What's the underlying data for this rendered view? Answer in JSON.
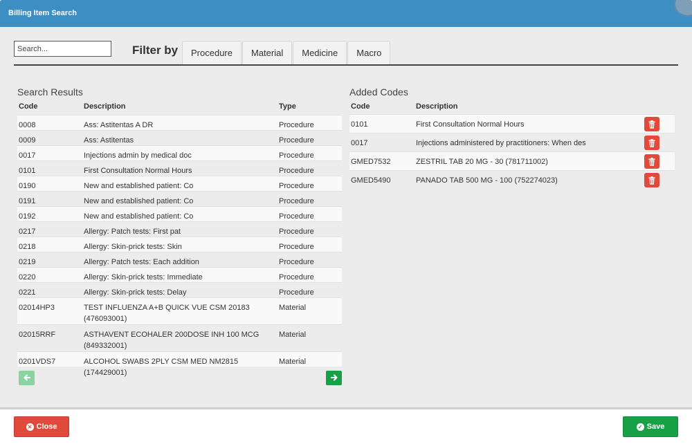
{
  "window": {
    "title": "Billing Item Search"
  },
  "search": {
    "placeholder": "Search...",
    "value": ""
  },
  "filter": {
    "label": "Filter by",
    "tabs": [
      {
        "label": "Procedure"
      },
      {
        "label": "Material"
      },
      {
        "label": "Medicine"
      },
      {
        "label": "Macro"
      }
    ]
  },
  "results": {
    "title": "Search Results",
    "columns": {
      "code": "Code",
      "description": "Description",
      "type": "Type"
    },
    "rows": [
      {
        "code": "0008",
        "description": "Ass: Astitentas A DR",
        "type": "Procedure"
      },
      {
        "code": "0009",
        "description": "Ass: Astitentas",
        "type": "Procedure"
      },
      {
        "code": "0017",
        "description": "Injections admin by medical doc",
        "type": "Procedure"
      },
      {
        "code": "0101",
        "description": "First Consultation Normal Hours",
        "type": "Procedure"
      },
      {
        "code": "0190",
        "description": "New and established patient: Co",
        "type": "Procedure"
      },
      {
        "code": "0191",
        "description": "New and established patient: Co",
        "type": "Procedure"
      },
      {
        "code": "0192",
        "description": "New and established patient: Co",
        "type": "Procedure"
      },
      {
        "code": "0217",
        "description": "Allergy: Patch tests: First pat",
        "type": "Procedure"
      },
      {
        "code": "0218",
        "description": "Allergy: Skin-prick tests: Skin",
        "type": "Procedure"
      },
      {
        "code": "0219",
        "description": "Allergy: Patch tests: Each addition",
        "type": "Procedure"
      },
      {
        "code": "0220",
        "description": "Allergy: Skin-prick tests: Immediate",
        "type": "Procedure"
      },
      {
        "code": "0221",
        "description": "Allergy: Skin-prick tests: Delay",
        "type": "Procedure"
      },
      {
        "code": "02014HP3",
        "description": "TEST INFLUENZA A+B QUICK VUE CSM 20183 (476093001)",
        "type": "Material"
      },
      {
        "code": "02015RRF",
        "description": "ASTHAVENT ECOHALER 200DOSE INH 100 MCG (849332001)",
        "type": "Material"
      },
      {
        "code": "0201VDS7",
        "description": "ALCOHOL SWABS 2PLY CSM MED NM2815 (174429001)",
        "type": "Material"
      }
    ],
    "prev_icon": "arrow-left-icon",
    "next_icon": "arrow-right-icon"
  },
  "added": {
    "title": "Added Codes",
    "columns": {
      "code": "Code",
      "description": "Description"
    },
    "rows": [
      {
        "code": "0101",
        "description": "First Consultation Normal Hours"
      },
      {
        "code": "0017",
        "description": "Injections administered by practitioners: When des"
      },
      {
        "code": "GMED7532",
        "description": "ZESTRIL TAB 20 MG - 30 (781711002)"
      },
      {
        "code": "GMED5490",
        "description": "PANADO TAB 500 MG - 100 (752274023)"
      }
    ],
    "delete_icon": "trash-icon"
  },
  "footer": {
    "close_label": "Close",
    "save_label": "Save"
  },
  "colors": {
    "header": "#3d8ec2",
    "danger": "#e04a3a",
    "success": "#18a047"
  }
}
